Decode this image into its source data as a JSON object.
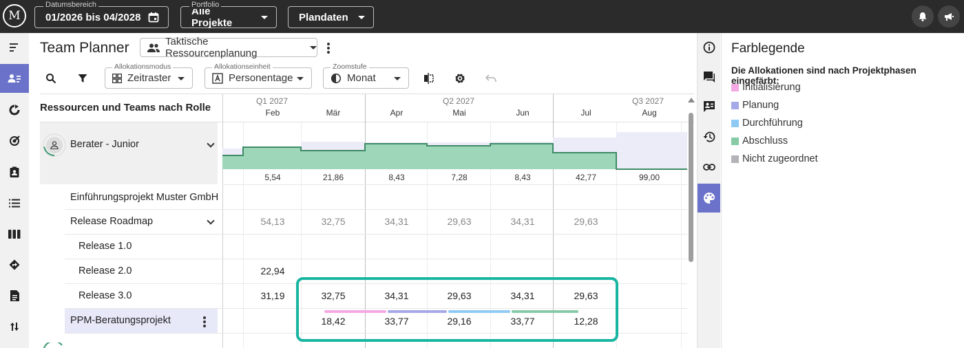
{
  "topbar": {
    "logo_text": "M",
    "date_range": {
      "legend": "Datumsbereich",
      "value": "01/2026 bis 04/2028"
    },
    "portfolio": {
      "legend": "Portfolio",
      "value": "Alle Projekte"
    },
    "data_button": "Plandaten"
  },
  "header": {
    "title": "Team Planner",
    "view": "Taktische Ressourcenplanung"
  },
  "toolbar": {
    "allocation_mode": {
      "legend": "Allokationsmodus",
      "value": "Zeitraster"
    },
    "allocation_unit": {
      "legend": "Allokationseinheit",
      "value": "Personentage"
    },
    "zoom": {
      "legend": "Zoomstufe",
      "value": "Monat"
    }
  },
  "grid": {
    "left_header": "Ressourcen und Teams nach Rolle",
    "quarters": [
      "Q1 2027",
      "Q2 2027",
      "Q3 2027"
    ],
    "months": [
      "Feb",
      "Mär",
      "Apr",
      "Mai",
      "Jun",
      "Jul",
      "Aug"
    ],
    "resource": {
      "name": "Berater - Junior",
      "capacity_values": [
        "5,54",
        "21,86",
        "8,43",
        "7,28",
        "8,43",
        "42,77",
        "99,00"
      ]
    },
    "rows": [
      {
        "label": "Einführungsprojekt Muster GmbH",
        "values": []
      },
      {
        "label": "Release Roadmap",
        "values": [
          "54,13",
          "32,75",
          "34,31",
          "29,63",
          "34,31",
          "29,63"
        ]
      },
      {
        "label": "Release 1.0",
        "values": []
      },
      {
        "label": "Release 2.0",
        "values": [
          "22,94"
        ]
      },
      {
        "label": "Release 3.0",
        "values": [
          "31,19",
          "32,75",
          "34,31",
          "29,63",
          "34,31",
          "29,63"
        ]
      },
      {
        "label": "PPM-Beratungsprojekt",
        "values": [
          "18,42",
          "33,77",
          "29,16",
          "33,77",
          "12,28"
        ]
      }
    ]
  },
  "legend": {
    "title": "Farblegende",
    "subtitle": "Die Allokationen sind nach Projektphasen eingefärbt:",
    "items": [
      {
        "label": "Initialisierung",
        "color": "#f4a9e4"
      },
      {
        "label": "Planung",
        "color": "#a5a9e8"
      },
      {
        "label": "Durchführung",
        "color": "#8fcaf5"
      },
      {
        "label": "Abschluss",
        "color": "#86caa6"
      },
      {
        "label": "Nicht zugeordnet",
        "color": "#b3b3b8"
      }
    ]
  },
  "colors": {
    "accent": "#6a72c9",
    "highlight": "#19b5a2",
    "allocation_fill": "#9dd6b8",
    "allocation_line": "#3e8a66",
    "capacity_fill": "#ececf8"
  },
  "icons": {
    "leftnav": [
      "menu-icon",
      "team-planner-icon",
      "refresh-icon",
      "target-icon",
      "assignment-icon",
      "list-icon",
      "columns-icon",
      "roadmap-icon",
      "document-icon",
      "sort-icon"
    ],
    "rightrail": [
      "info-icon",
      "chat-icon",
      "comment-icon",
      "history-icon",
      "link-icon",
      "palette-icon"
    ]
  }
}
